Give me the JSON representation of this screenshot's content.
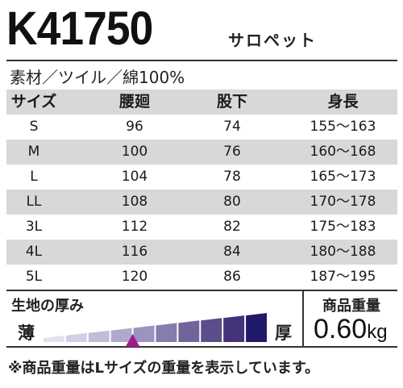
{
  "header": {
    "code": "K41750",
    "name": "サロペット"
  },
  "material": "素材／ツイル／綿100%",
  "table": {
    "headers": [
      "サイズ",
      "腰廻",
      "股下",
      "身長"
    ],
    "rows": [
      [
        "S",
        "96",
        "74",
        "155～163"
      ],
      [
        "M",
        "100",
        "76",
        "160～168"
      ],
      [
        "L",
        "104",
        "78",
        "165～173"
      ],
      [
        "LL",
        "108",
        "80",
        "170～178"
      ],
      [
        "3L",
        "112",
        "82",
        "175～183"
      ],
      [
        "4L",
        "116",
        "84",
        "180～188"
      ],
      [
        "5L",
        "120",
        "86",
        "187～195"
      ]
    ]
  },
  "thickness": {
    "label": "生地の厚み",
    "thin_label": "薄",
    "thick_label": "厚",
    "segments": 10,
    "indicator_position": 4,
    "colors": [
      "#e4e1ee",
      "#d4cfe4",
      "#c3bcd9",
      "#b1a9cd",
      "#9d93bf",
      "#877cae",
      "#71649c",
      "#5b4c8a",
      "#443378",
      "#201a6b"
    ],
    "indicator_color": "#9c1e8c"
  },
  "weight": {
    "label": "商品重量",
    "value": "0.60",
    "unit": "kg"
  },
  "footnote": "※商品重量はLサイズの重量を表示しています。"
}
